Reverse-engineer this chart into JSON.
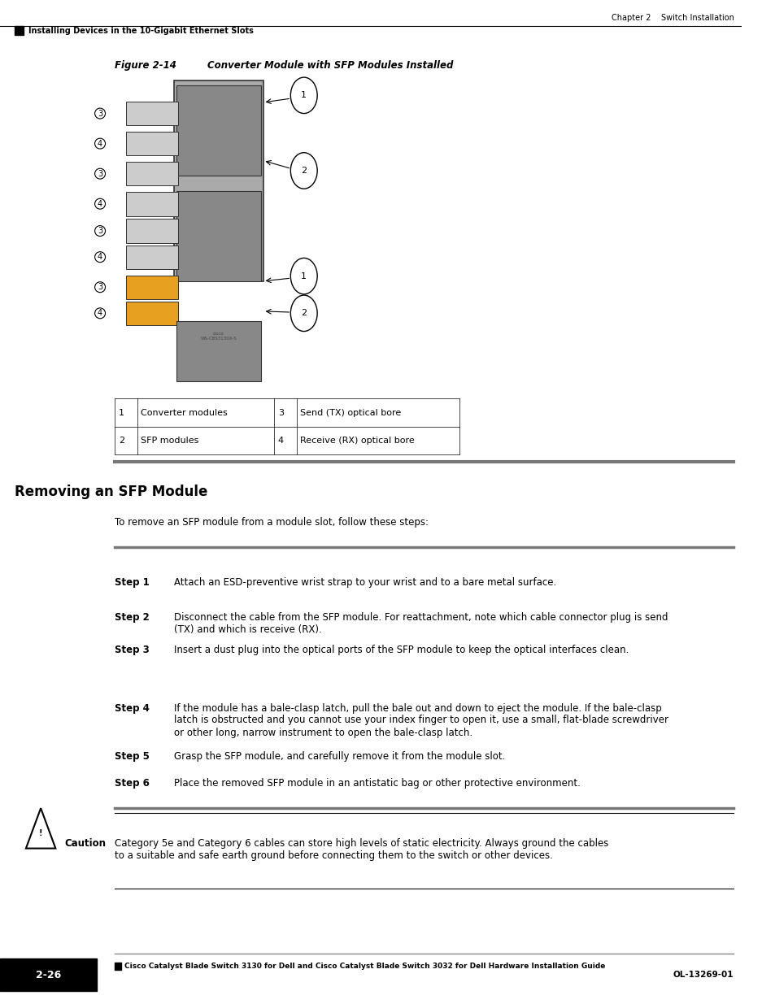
{
  "page_width": 9.54,
  "page_height": 12.35,
  "bg_color": "#ffffff",
  "header_text_right": "Chapter 2    Switch Installation",
  "header_text_left": "Installing Devices in the 10-Gigabit Ethernet Slots",
  "figure_title": "Figure 2-14",
  "figure_caption": "Converter Module with SFP Modules Installed",
  "table_rows": [
    [
      "1",
      "Converter modules",
      "3",
      "Send (TX) optical bore"
    ],
    [
      "2",
      "SFP modules",
      "4",
      "Receive (RX) optical bore"
    ]
  ],
  "section_title": "Removing an SFP Module",
  "intro_text": "To remove an SFP module from a module slot, follow these steps:",
  "steps": [
    [
      "Step 1",
      "Attach an ESD-preventive wrist strap to your wrist and to a bare metal surface."
    ],
    [
      "Step 2",
      "Disconnect the cable from the SFP module. For reattachment, note which cable connector plug is send\n(TX) and which is receive (RX)."
    ],
    [
      "Step 3",
      "Insert a dust plug into the optical ports of the SFP module to keep the optical interfaces clean."
    ],
    [
      "Step 4",
      "If the module has a bale-clasp latch, pull the bale out and down to eject the module. If the bale-clasp\nlatch is obstructed and you cannot use your index finger to open it, use a small, flat-blade screwdriver\nor other long, narrow instrument to open the bale-clasp latch."
    ],
    [
      "Step 5",
      "Grasp the SFP module, and carefully remove it from the module slot."
    ],
    [
      "Step 6",
      "Place the removed SFP module in an antistatic bag or other protective environment."
    ]
  ],
  "caution_label": "Caution",
  "caution_text": "Category 5e and Category 6 cables can store high levels of static electricity. Always ground the cables\nto a suitable and safe earth ground before connecting them to the switch or other devices.",
  "footer_text": "Cisco Catalyst Blade Switch 3130 for Dell and Cisco Catalyst Blade Switch 3032 for Dell Hardware Installation Guide",
  "footer_page": "2-26",
  "footer_right": "OL-13269-01",
  "black_bar_color": "#000000",
  "gray_line_color": "#808080",
  "light_gray": "#c0c0c0"
}
